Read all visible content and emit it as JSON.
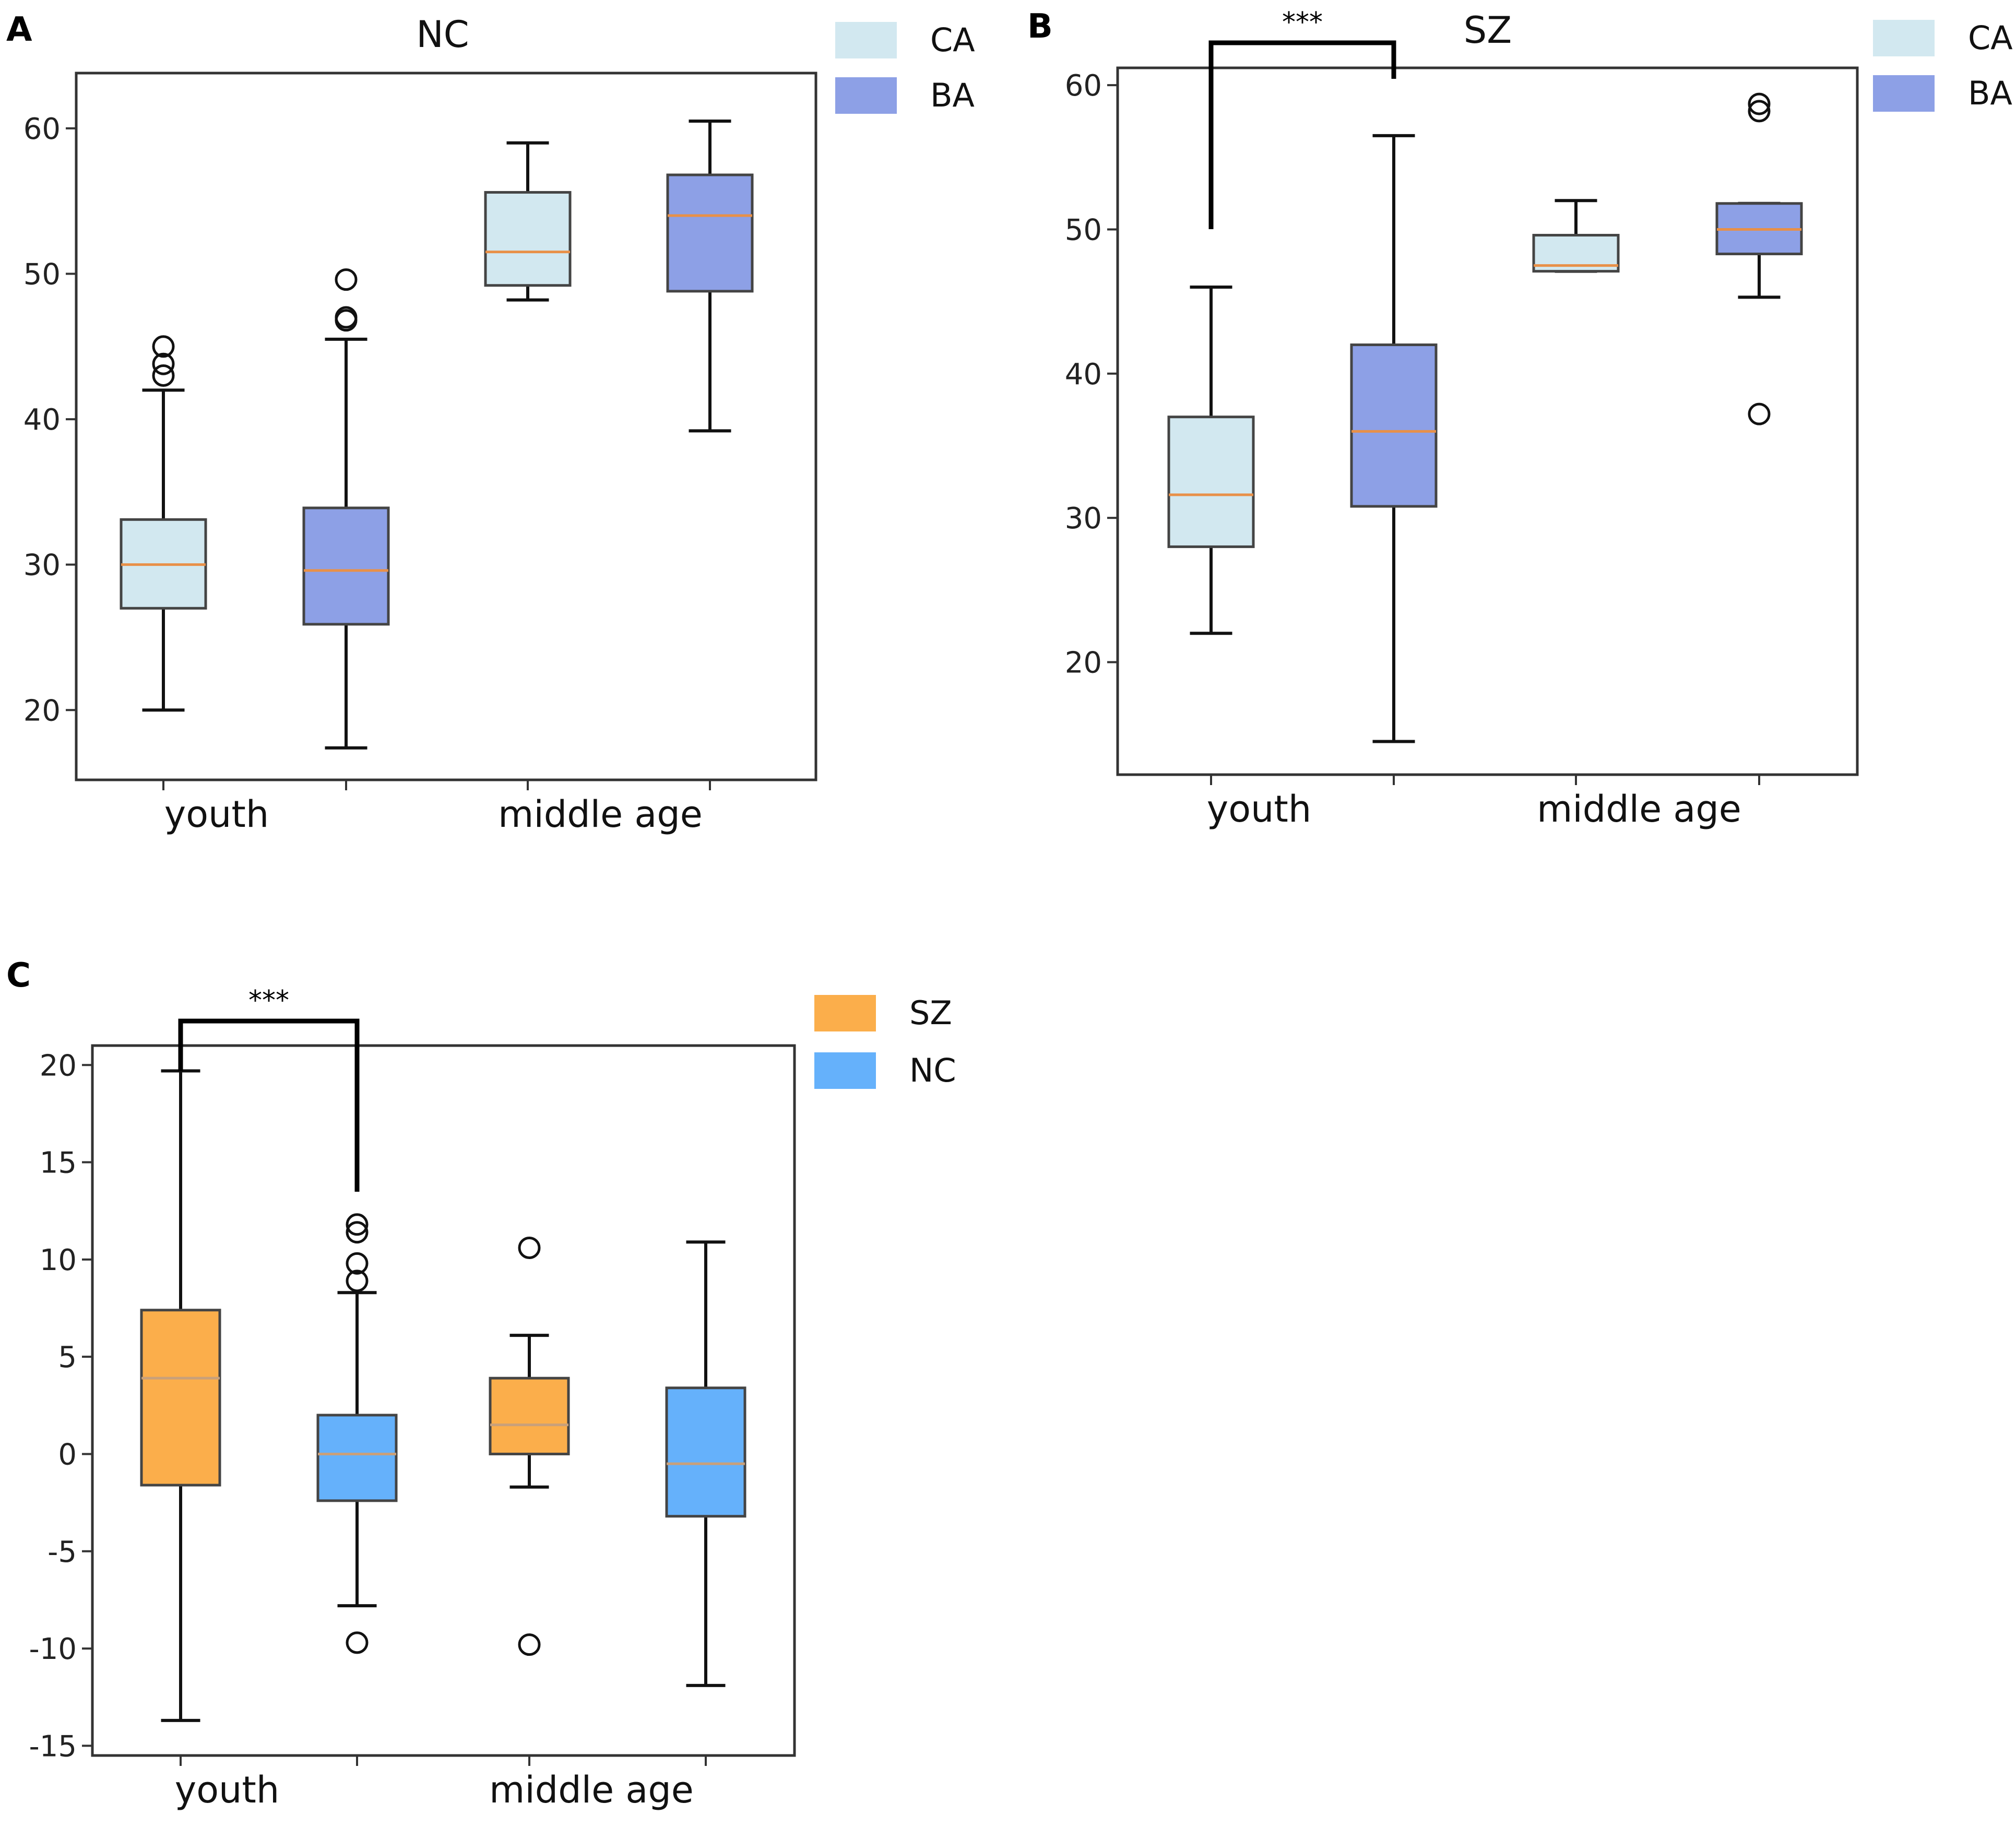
{
  "chart_data": [
    {
      "panel_label": "A",
      "type": "box",
      "title": "NC",
      "categories": [
        "youth",
        "middle age"
      ],
      "legend": [
        {
          "label": "CA",
          "color": "#d2e8f0"
        },
        {
          "label": "BA",
          "color": "#8da0e6"
        }
      ],
      "ylim": [
        15.2,
        63.8
      ],
      "yticks": [
        20,
        30,
        40,
        50,
        60
      ],
      "significance": null,
      "boxes": [
        {
          "category": "youth",
          "series": "CA",
          "whisker_low": 20,
          "q1": 27,
          "median": 30,
          "q3": 33.1,
          "whisker_high": 42,
          "outliers": [
            43,
            43.8,
            45
          ]
        },
        {
          "category": "youth",
          "series": "BA",
          "whisker_low": 17.4,
          "q1": 25.9,
          "median": 29.6,
          "q3": 33.9,
          "whisker_high": 45.5,
          "outliers": [
            46.8,
            47,
            49.6
          ]
        },
        {
          "category": "middle age",
          "series": "CA",
          "whisker_low": 48.2,
          "q1": 49.2,
          "median": 51.5,
          "q3": 55.6,
          "whisker_high": 59,
          "outliers": []
        },
        {
          "category": "middle age",
          "series": "BA",
          "whisker_low": 39.2,
          "q1": 48.8,
          "median": 54,
          "q3": 56.8,
          "whisker_high": 60.5,
          "outliers": []
        }
      ]
    },
    {
      "panel_label": "B",
      "type": "box",
      "title": "SZ",
      "categories": [
        "youth",
        "middle age"
      ],
      "legend": [
        {
          "label": "CA",
          "color": "#d2e8f0"
        },
        {
          "label": "BA",
          "color": "#8da0e6"
        }
      ],
      "ylim": [
        12.2,
        61.2
      ],
      "yticks": [
        20,
        30,
        40,
        50,
        60
      ],
      "significance": {
        "label": "***",
        "from_box": 0,
        "to_box": 1
      },
      "boxes": [
        {
          "category": "youth",
          "series": "CA",
          "whisker_low": 22,
          "q1": 28,
          "median": 31.6,
          "q3": 37,
          "whisker_high": 46,
          "outliers": []
        },
        {
          "category": "youth",
          "series": "BA",
          "whisker_low": 14.5,
          "q1": 30.8,
          "median": 36,
          "q3": 42,
          "whisker_high": 56.5,
          "outliers": []
        },
        {
          "category": "middle age",
          "series": "CA",
          "whisker_low": 47.1,
          "q1": 47.1,
          "median": 47.5,
          "q3": 49.6,
          "whisker_high": 52,
          "outliers": []
        },
        {
          "category": "middle age",
          "series": "BA",
          "whisker_low": 45.3,
          "q1": 48.3,
          "median": 50,
          "q3": 51.8,
          "whisker_high": 51.8,
          "outliers": [
            37.2,
            58.2,
            58.7
          ]
        }
      ]
    },
    {
      "panel_label": "C",
      "type": "box",
      "title": "",
      "categories": [
        "youth",
        "middle age"
      ],
      "legend": [
        {
          "label": "SZ",
          "color": "#fbae4b"
        },
        {
          "label": "NC",
          "color": "#65b1fb"
        }
      ],
      "ylim": [
        -15.5,
        21
      ],
      "yticks": [
        20,
        15,
        10,
        5,
        0,
        -5,
        -10,
        -15
      ],
      "significance": {
        "label": "***",
        "from_box": 0,
        "to_box": 1
      },
      "boxes": [
        {
          "category": "youth",
          "series": "SZ",
          "whisker_low": -13.7,
          "q1": -1.6,
          "median": 3.9,
          "q3": 7.4,
          "whisker_high": 19.7,
          "outliers": []
        },
        {
          "category": "youth",
          "series": "NC",
          "whisker_low": -7.8,
          "q1": -2.4,
          "median": 0,
          "q3": 2,
          "whisker_high": 8.3,
          "outliers": [
            -9.7,
            8.9,
            9.8,
            11.4,
            11.8
          ]
        },
        {
          "category": "middle age",
          "series": "SZ",
          "whisker_low": -1.7,
          "q1": 0,
          "median": 1.5,
          "q3": 3.9,
          "whisker_high": 6.1,
          "outliers": [
            -9.8,
            10.6
          ]
        },
        {
          "category": "middle age",
          "series": "NC",
          "whisker_low": -11.9,
          "q1": -3.2,
          "median": -0.5,
          "q3": 3.4,
          "whisker_high": 10.9,
          "outliers": []
        }
      ]
    }
  ]
}
